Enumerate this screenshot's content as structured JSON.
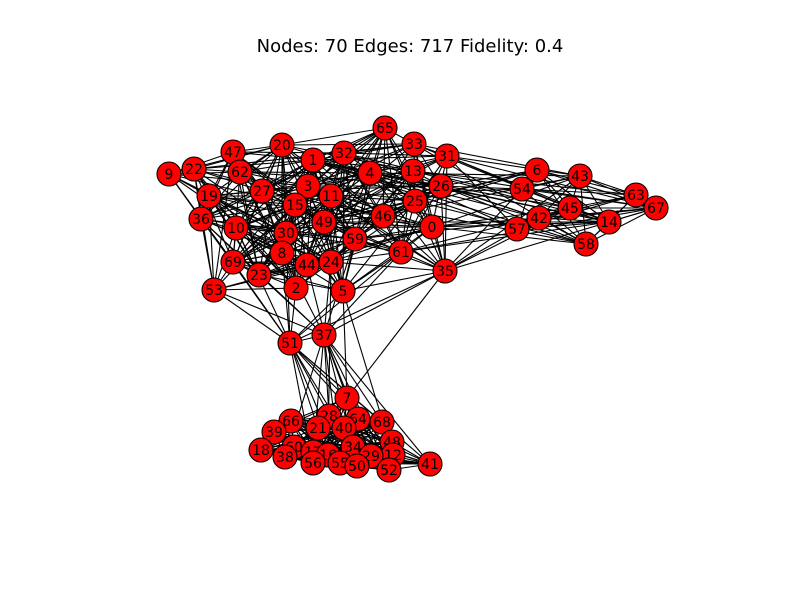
{
  "title": "Nodes: 70 Edges: 717 Fidelity: 0.4",
  "colors": {
    "node_fill": "#ff0000",
    "node_stroke": "#000000",
    "edge": "#000000",
    "background": "#ffffff"
  },
  "graph": {
    "nodes": [
      {
        "id": "65"
      },
      {
        "id": "33"
      },
      {
        "id": "31"
      },
      {
        "id": "20"
      },
      {
        "id": "32"
      },
      {
        "id": "47"
      },
      {
        "id": "1"
      },
      {
        "id": "22"
      },
      {
        "id": "9"
      },
      {
        "id": "62"
      },
      {
        "id": "4"
      },
      {
        "id": "13"
      },
      {
        "id": "6"
      },
      {
        "id": "43"
      },
      {
        "id": "26"
      },
      {
        "id": "54"
      },
      {
        "id": "63"
      },
      {
        "id": "67"
      },
      {
        "id": "19"
      },
      {
        "id": "27"
      },
      {
        "id": "3"
      },
      {
        "id": "11"
      },
      {
        "id": "25"
      },
      {
        "id": "15"
      },
      {
        "id": "45"
      },
      {
        "id": "36"
      },
      {
        "id": "49"
      },
      {
        "id": "46"
      },
      {
        "id": "42"
      },
      {
        "id": "14"
      },
      {
        "id": "10"
      },
      {
        "id": "0"
      },
      {
        "id": "57"
      },
      {
        "id": "30"
      },
      {
        "id": "59"
      },
      {
        "id": "58"
      },
      {
        "id": "8"
      },
      {
        "id": "61"
      },
      {
        "id": "69"
      },
      {
        "id": "24"
      },
      {
        "id": "44"
      },
      {
        "id": "23"
      },
      {
        "id": "35"
      },
      {
        "id": "2"
      },
      {
        "id": "53"
      },
      {
        "id": "5"
      },
      {
        "id": "51"
      },
      {
        "id": "37"
      },
      {
        "id": "7"
      },
      {
        "id": "28"
      },
      {
        "id": "66"
      },
      {
        "id": "64"
      },
      {
        "id": "68"
      },
      {
        "id": "21"
      },
      {
        "id": "40"
      },
      {
        "id": "39"
      },
      {
        "id": "48"
      },
      {
        "id": "60"
      },
      {
        "id": "34"
      },
      {
        "id": "18"
      },
      {
        "id": "17"
      },
      {
        "id": "16"
      },
      {
        "id": "12"
      },
      {
        "id": "29"
      },
      {
        "id": "38"
      },
      {
        "id": "56"
      },
      {
        "id": "55"
      },
      {
        "id": "50"
      },
      {
        "id": "52"
      },
      {
        "id": "41"
      }
    ]
  }
}
